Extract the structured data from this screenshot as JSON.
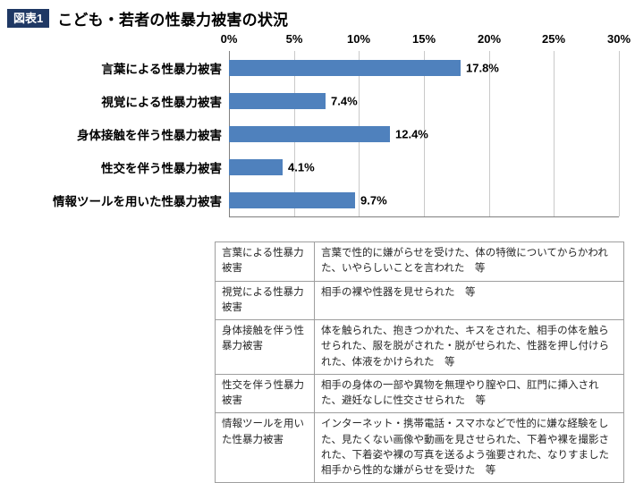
{
  "header": {
    "tag": "図表1",
    "title": "こども・若者の性暴力被害の状況"
  },
  "chart_data": {
    "type": "bar",
    "orientation": "horizontal",
    "title": "こども・若者の性暴力被害の状況",
    "categories": [
      "言葉による性暴力被害",
      "視覚による性暴力被害",
      "身体接触を伴う性暴力被害",
      "性交を伴う性暴力被害",
      "情報ツールを用いた性暴力被害"
    ],
    "values": [
      17.8,
      7.4,
      12.4,
      4.1,
      9.7
    ],
    "value_labels": [
      "17.8%",
      "7.4%",
      "12.4%",
      "4.1%",
      "9.7%"
    ],
    "xlim": [
      0,
      30
    ],
    "x_ticks": [
      "0%",
      "5%",
      "10%",
      "15%",
      "20%",
      "25%",
      "30%"
    ],
    "grid": true,
    "bar_color": "#4F81BD",
    "axis_color": "#808080",
    "gridline_color": "#C9C9C9",
    "legend": "none"
  },
  "table": {
    "rows": [
      {
        "term": "言葉による性暴力被害",
        "definition": "言葉で性的に嫌がらせを受けた、体の特徴についてからかわれた、いやらしいことを言われた　等"
      },
      {
        "term": "視覚による性暴力被害",
        "definition": "相手の裸や性器を見せられた　等"
      },
      {
        "term": "身体接触を伴う性暴力被害",
        "definition": "体を触られた、抱きつかれた、キスをされた、相手の体を触らせられた、服を脱がされた・脱がせられた、性器を押し付けられた、体液をかけられた　等"
      },
      {
        "term": "性交を伴う性暴力被害",
        "definition": "相手の身体の一部や異物を無理やり膣や口、肛門に挿入された、避妊なしに性交させられた　等"
      },
      {
        "term": "情報ツールを用いた性暴力被害",
        "definition": "インターネット・携帯電話・スマホなどで性的に嫌な経験をした、見たくない画像や動画を見させられた、下着や裸を撮影された、下着姿や裸の写真を送るよう強要された、なりすました相手から性的な嫌がらせを受けた　等"
      }
    ]
  }
}
